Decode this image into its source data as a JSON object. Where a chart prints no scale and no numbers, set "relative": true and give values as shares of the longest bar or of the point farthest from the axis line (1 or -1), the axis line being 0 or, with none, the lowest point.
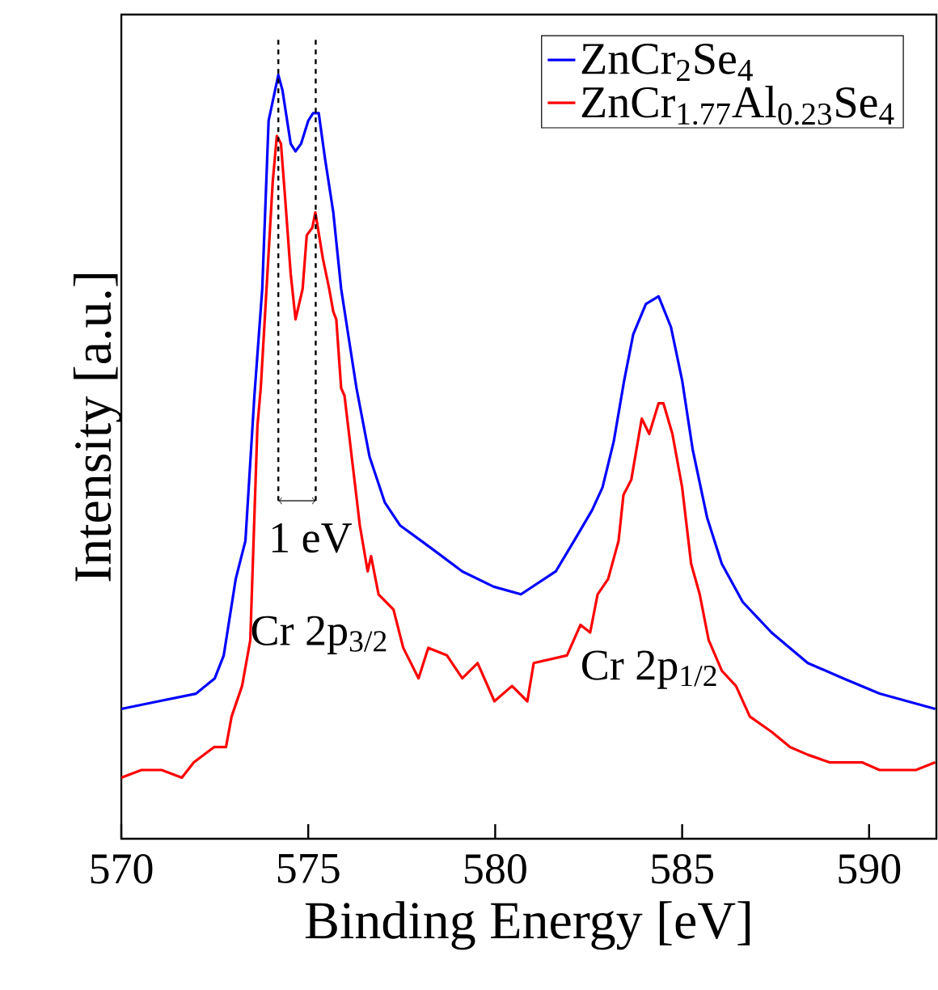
{
  "chart_data": {
    "type": "line",
    "relative": true,
    "xlabel": "Binding Energy [eV]",
    "ylabel": "Intensity [a.u.]",
    "xlim": [
      570,
      591.8
    ],
    "xticks": [
      570,
      575,
      580,
      585,
      590
    ],
    "legend": "top right",
    "marker": "none",
    "line_style": "solid",
    "grid": false,
    "series": [
      {
        "name": "ZnCr$_{2}$Se$_{4}$",
        "color": "#0000ff",
        "x": [
          570.0,
          571.0,
          572.0,
          572.5,
          572.74,
          573.06,
          573.32,
          573.56,
          573.77,
          573.94,
          574.2,
          574.31,
          574.53,
          574.66,
          574.81,
          575.0,
          575.13,
          575.28,
          575.45,
          575.67,
          575.88,
          576.1,
          576.29,
          576.64,
          577.05,
          577.46,
          578.3,
          579.12,
          579.96,
          580.69,
          581.62,
          582.11,
          582.59,
          582.87,
          583.17,
          583.45,
          583.69,
          584.03,
          584.37,
          584.7,
          585.0,
          585.28,
          585.67,
          586.06,
          586.62,
          587.39,
          588.36,
          589.31,
          590.28,
          591.77
        ],
        "values": [
          0.17,
          0.18,
          0.19,
          0.21,
          0.24,
          0.34,
          0.39,
          0.58,
          0.72,
          0.94,
          1.0,
          0.98,
          0.91,
          0.9,
          0.91,
          0.94,
          0.95,
          0.95,
          0.89,
          0.82,
          0.72,
          0.65,
          0.59,
          0.5,
          0.44,
          0.41,
          0.38,
          0.35,
          0.33,
          0.32,
          0.35,
          0.39,
          0.43,
          0.46,
          0.52,
          0.6,
          0.66,
          0.7,
          0.71,
          0.67,
          0.6,
          0.51,
          0.42,
          0.36,
          0.31,
          0.27,
          0.23,
          0.21,
          0.19,
          0.17
        ]
      },
      {
        "name": "ZnCr$_{1.77}$Al$_{0.23}$Se$_{4}$",
        "color": "#ff0000",
        "x": [
          570.0,
          570.54,
          571.08,
          571.62,
          571.94,
          572.48,
          572.8,
          572.95,
          573.23,
          573.45,
          573.64,
          573.73,
          573.92,
          574.05,
          574.16,
          574.27,
          574.38,
          574.53,
          574.66,
          574.85,
          574.96,
          575.11,
          575.19,
          575.39,
          575.56,
          575.67,
          575.75,
          575.88,
          575.97,
          576.38,
          576.59,
          576.68,
          576.88,
          577.28,
          577.54,
          577.95,
          578.21,
          578.71,
          579.12,
          579.53,
          579.98,
          580.45,
          580.86,
          581.03,
          581.92,
          582.28,
          582.54,
          582.74,
          583.02,
          583.3,
          583.43,
          583.64,
          583.92,
          584.12,
          584.37,
          584.5,
          584.74,
          585.0,
          585.24,
          585.47,
          585.71,
          586.06,
          586.44,
          586.81,
          587.39,
          587.89,
          588.36,
          588.94,
          589.81,
          590.28,
          591.25,
          591.77
        ],
        "values": [
          0.08,
          0.09,
          0.09,
          0.08,
          0.1,
          0.12,
          0.12,
          0.16,
          0.2,
          0.26,
          0.54,
          0.59,
          0.75,
          0.86,
          0.92,
          0.91,
          0.84,
          0.74,
          0.68,
          0.72,
          0.79,
          0.8,
          0.82,
          0.76,
          0.72,
          0.69,
          0.68,
          0.59,
          0.58,
          0.41,
          0.35,
          0.37,
          0.32,
          0.3,
          0.25,
          0.21,
          0.25,
          0.24,
          0.21,
          0.23,
          0.18,
          0.2,
          0.18,
          0.23,
          0.24,
          0.28,
          0.27,
          0.32,
          0.34,
          0.39,
          0.45,
          0.47,
          0.55,
          0.53,
          0.57,
          0.57,
          0.53,
          0.46,
          0.36,
          0.32,
          0.26,
          0.22,
          0.2,
          0.16,
          0.14,
          0.12,
          0.11,
          0.1,
          0.1,
          0.09,
          0.09,
          0.1
        ]
      }
    ],
    "ref_lines": [
      {
        "axis": "x",
        "value": 574.2,
        "color": "#000000",
        "line_style": "dashed"
      },
      {
        "axis": "x",
        "value": 575.2,
        "color": "#000000",
        "line_style": "dashed"
      }
    ],
    "annotations": [
      "1 eV",
      "Cr 2p$_{3/2}$",
      "Cr 2p$_{1/2}$"
    ]
  }
}
